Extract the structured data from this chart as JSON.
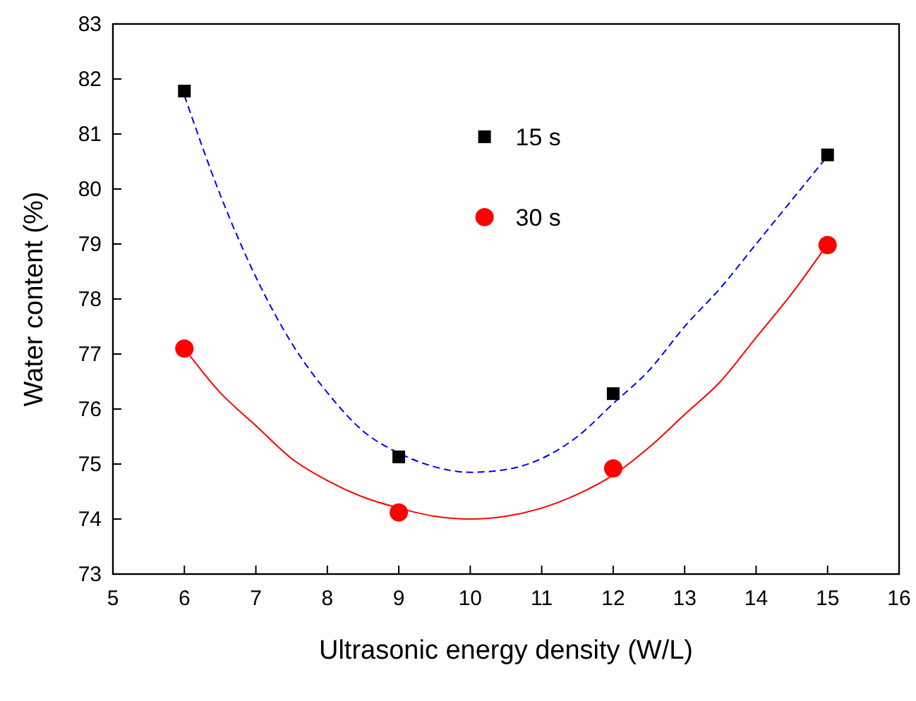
{
  "chart_data": {
    "type": "scatter",
    "xlabel": "Ultrasonic energy density (W/L)",
    "ylabel": "Water content (%)",
    "x": [
      6,
      9,
      12,
      15
    ],
    "series": [
      {
        "name": "15 s",
        "color": "#000000",
        "marker": "square",
        "values": [
          81.78,
          75.13,
          76.28,
          80.62
        ]
      },
      {
        "name": "30 s",
        "color": "#ff0000",
        "marker": "circle",
        "values": [
          77.1,
          74.12,
          74.92,
          78.98
        ]
      },
      {
        "type": "line",
        "color": "#0000ff",
        "line_style": "dashed",
        "x": [
          6,
          6.5,
          7,
          7.5,
          8,
          8.5,
          9,
          9.5,
          10,
          10.5,
          11,
          11.5,
          12,
          12.5,
          13,
          13.5,
          14,
          14.5,
          15
        ],
        "values": [
          81.7,
          79.9,
          78.4,
          77.2,
          76.3,
          75.6,
          75.2,
          74.95,
          74.85,
          74.9,
          75.1,
          75.5,
          76.1,
          76.7,
          77.5,
          78.2,
          79.0,
          79.8,
          80.6
        ]
      },
      {
        "type": "line",
        "color": "#ff0000",
        "line_style": "solid",
        "x": [
          6,
          6.5,
          7,
          7.5,
          8,
          8.5,
          9,
          9.5,
          10,
          10.5,
          11,
          11.5,
          12,
          12.5,
          13,
          13.5,
          14,
          14.5,
          15
        ],
        "values": [
          77.1,
          76.3,
          75.7,
          75.1,
          74.7,
          74.4,
          74.2,
          74.05,
          74.0,
          74.05,
          74.2,
          74.45,
          74.8,
          75.3,
          75.9,
          76.5,
          77.3,
          78.1,
          79.0
        ]
      }
    ],
    "xlim": [
      5,
      16
    ],
    "xticks": [
      5,
      6,
      7,
      8,
      9,
      10,
      11,
      12,
      13,
      14,
      15,
      16
    ],
    "ylim": [
      73,
      83
    ],
    "yticks": [
      73,
      74,
      75,
      76,
      77,
      78,
      79,
      80,
      81,
      82,
      83
    ],
    "grid": false,
    "legend": "top"
  }
}
